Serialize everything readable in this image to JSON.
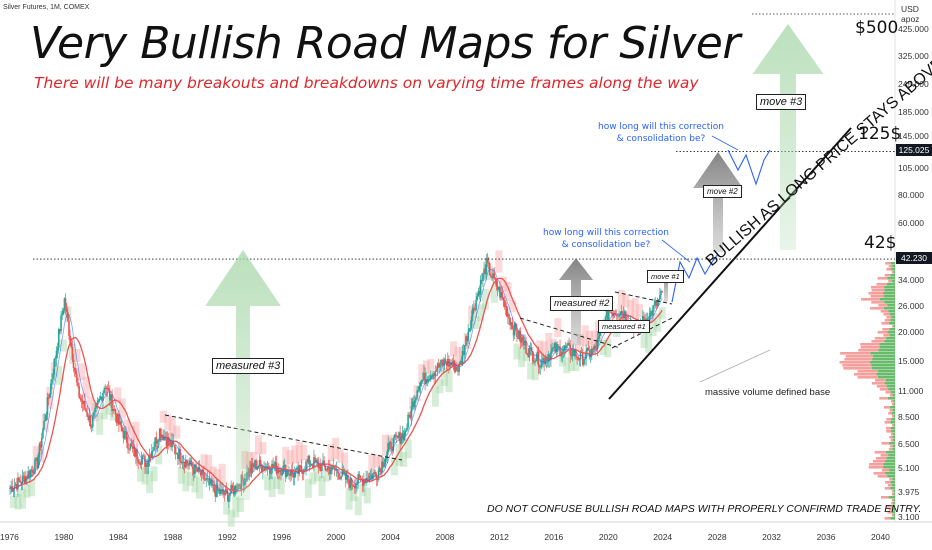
{
  "header": {
    "ticker": "Silver Futures, 1M, COMEX",
    "title": "Very Bullish Road Maps for Silver",
    "subtitle": "There will be many breakouts and breakdowns on varying time frames along the way"
  },
  "axis": {
    "currency": "USD",
    "scale_note": "apoz",
    "y_ticks": [
      "425.000",
      "325.000",
      "245.000",
      "185.000",
      "145.000",
      "105.000",
      "80.000",
      "60.000",
      "34.000",
      "26.000",
      "20.000",
      "15.000",
      "11.000",
      "8.500",
      "6.500",
      "5.100",
      "3.975",
      "3.100"
    ],
    "x_ticks": [
      "1976",
      "1980",
      "1984",
      "1988",
      "1992",
      "1996",
      "2000",
      "2004",
      "2008",
      "2012",
      "2016",
      "2020",
      "2024",
      "2028",
      "2032",
      "2036",
      "2040"
    ],
    "price_tags": [
      "125.025",
      "42.230"
    ]
  },
  "levels": {
    "l500": "$500",
    "l125": "125$",
    "l42": "42$"
  },
  "labels": {
    "measured3": "measured #3",
    "measured2": "measured #2",
    "measured1": "measured #1",
    "move1": "move #1",
    "move2": "move #2",
    "move3": "move #3",
    "question_lower": "how long will this correction\n& consolidation be?",
    "question_upper": "how long will this correction\n& consolidation be?",
    "diagonal": "BULLISH AS LONG PRICE STAYS ABOVE",
    "volume": "massive volume defined base",
    "disclaimer": "DO NOT CONFUSE BULLISH ROAD MAPS WITH PROPERLY CONFIRMD TRADE ENTRY."
  },
  "colors": {
    "bull": "#26a69a",
    "bear": "#ef5350",
    "arrow_green": "#a5d6a7",
    "arrow_gray": "#8c8c8c",
    "annotation_blue": "#2962ff",
    "subtitle_red": "#e0262b"
  },
  "chart_data": {
    "type": "line",
    "scale": "log",
    "ylim": [
      3.1,
      500
    ],
    "xlim": [
      1976,
      2040
    ],
    "series": [
      {
        "x": [
          1976,
          1977,
          1978,
          1979,
          1980,
          1981,
          1982,
          1983,
          1984,
          1985,
          1986,
          1987,
          1988,
          1989,
          1990,
          1991,
          1992,
          1993,
          1994,
          1995,
          1996,
          1997,
          1998,
          1999,
          2000,
          2001,
          2002,
          2003,
          2004,
          2005,
          2006,
          2007,
          2008,
          2009,
          2010,
          2011,
          2012,
          2013,
          2014,
          2015,
          2016,
          2017,
          2018,
          2019,
          2020,
          2021,
          2022,
          2023,
          2024
        ],
        "values": [
          4.2,
          4.6,
          5.4,
          12,
          28,
          11,
          8,
          12,
          8,
          6.1,
          5.4,
          7.5,
          6.3,
          5.4,
          4.8,
          4.1,
          3.9,
          4.5,
          5.3,
          5.2,
          5.1,
          4.8,
          5.5,
          5.2,
          5,
          4.4,
          4.6,
          4.9,
          6.5,
          7.3,
          12,
          13.5,
          15,
          14,
          25,
          40,
          30,
          21,
          17,
          15,
          17,
          17,
          15.5,
          17,
          25,
          25,
          21,
          24,
          30
        ]
      }
    ],
    "projection": {
      "x": [
        2024.5,
        2025.5,
        2026.5,
        2027.5,
        2028.5,
        2029.5,
        2030.5,
        2031.5
      ],
      "values": [
        30,
        48,
        40,
        50,
        100,
        135,
        110,
        125
      ]
    },
    "horizontal_levels": [
      42.23,
      125.025,
      500
    ],
    "trend_line": {
      "x": [
        2025,
        2031
      ],
      "values": [
        9,
        140
      ]
    }
  }
}
